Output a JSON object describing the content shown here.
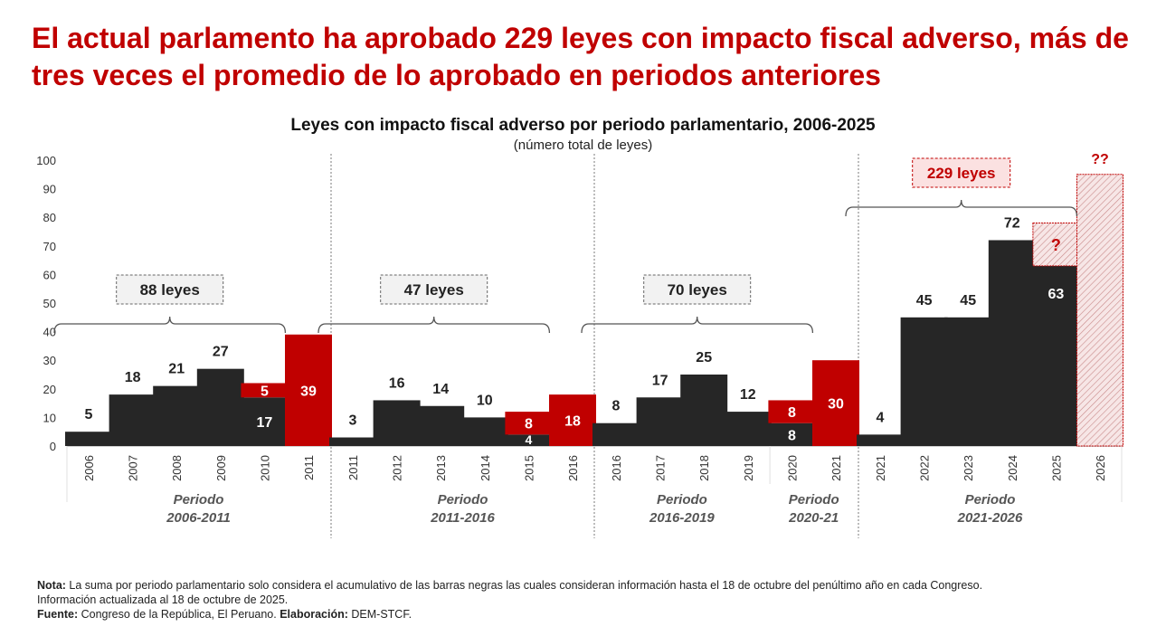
{
  "headline": "El actual parlamento ha aprobado 229 leyes con impacto fiscal adverso, más de tres veces el promedio de lo aprobado en periodos anteriores",
  "colors": {
    "headline": "#c00000",
    "black_bar": "#262626",
    "red_bar": "#c00000",
    "hatch": "#d9a0a0"
  },
  "chart_data": {
    "type": "bar",
    "title": "Leyes con impacto fiscal adverso por periodo parlamentario, 2006-2025",
    "subtitle": "(número total de leyes)",
    "xlabel": "",
    "ylabel": "",
    "ylim": [
      0,
      100
    ],
    "yticks": [
      0,
      10,
      20,
      30,
      40,
      50,
      60,
      70,
      80,
      90,
      100
    ],
    "grid": false,
    "legend": "none",
    "groups": [
      {
        "period_label_line1": "Periodo",
        "period_label_line2": "2006-2011",
        "summary": "88 leyes",
        "summary_style": "neutral",
        "bars": [
          {
            "year": "2006",
            "black": 5,
            "red": 0,
            "label": "5"
          },
          {
            "year": "2007",
            "black": 18,
            "red": 0,
            "label": "18"
          },
          {
            "year": "2008",
            "black": 21,
            "red": 0,
            "label": "21"
          },
          {
            "year": "2009",
            "black": 27,
            "red": 0,
            "label": "27"
          },
          {
            "year": "2010",
            "black": 17,
            "red": 5,
            "label_black": "17",
            "label_red": "5"
          },
          {
            "year": "2011",
            "black": 0,
            "red": 39,
            "label_red": "39"
          }
        ],
        "bracket_bars": 5
      },
      {
        "period_label_line1": "Periodo",
        "period_label_line2": "2011-2016",
        "summary": "47 leyes",
        "summary_style": "neutral",
        "bars": [
          {
            "year": "2011",
            "black": 3,
            "red": 0,
            "label": "3"
          },
          {
            "year": "2012",
            "black": 16,
            "red": 0,
            "label": "16"
          },
          {
            "year": "2013",
            "black": 14,
            "red": 0,
            "label": "14"
          },
          {
            "year": "2014",
            "black": 10,
            "red": 0,
            "label": "10"
          },
          {
            "year": "2015",
            "black": 4,
            "red": 8,
            "label_black": "4",
            "label_red": "8"
          },
          {
            "year": "2016",
            "black": 0,
            "red": 18,
            "label_red": "18"
          }
        ],
        "bracket_bars": 5
      },
      {
        "period_label_line1": "Periodo",
        "period_label_line2": "2016-2019",
        "summary": "70 leyes",
        "summary_style": "neutral",
        "bars": [
          {
            "year": "2016",
            "black": 8,
            "red": 0,
            "label": "8"
          },
          {
            "year": "2017",
            "black": 17,
            "red": 0,
            "label": "17"
          },
          {
            "year": "2018",
            "black": 25,
            "red": 0,
            "label": "25"
          },
          {
            "year": "2019",
            "black": 12,
            "red": 0,
            "label": "12"
          },
          {
            "year": "2020",
            "black": 8,
            "red": 8,
            "label_black": "8",
            "label_red": "8"
          },
          {
            "year": "2021",
            "black": 0,
            "red": 30,
            "label_red": "30"
          }
        ],
        "bracket_bars": 5,
        "sub_period": {
          "line1": "Periodo",
          "line2": "2020-21",
          "from_bar": 4
        }
      },
      {
        "period_label_line1": "Periodo",
        "period_label_line2": "2021-2026",
        "summary": "229 leyes",
        "summary_style": "highlight",
        "bars": [
          {
            "year": "2021",
            "black": 4,
            "red": 0,
            "label": "4"
          },
          {
            "year": "2022",
            "black": 45,
            "red": 0,
            "label": "45"
          },
          {
            "year": "2023",
            "black": 45,
            "red": 0,
            "label": "45"
          },
          {
            "year": "2024",
            "black": 72,
            "red": 0,
            "label": "72"
          },
          {
            "year": "2025",
            "black": 63,
            "red": 0,
            "hatched": 15,
            "label_black": "63",
            "label_hatched": "?"
          },
          {
            "year": "2026",
            "black": 0,
            "red": 0,
            "hatched": 95,
            "label_top": "??"
          }
        ],
        "bracket_bars": 5
      }
    ]
  },
  "note": {
    "nota_label": "Nota:",
    "nota_text": " La suma por periodo parlamentario solo considera el acumulativo de las barras negras las cuales consideran información hasta el 18 de octubre del penúltimo año en cada Congreso.",
    "update_text": "Información actualizada al 18 de octubre de 2025.",
    "fuente_label": "Fuente:",
    "fuente_text": " Congreso de la República, El Peruano. ",
    "elaboracion_label": "Elaboración:",
    "elaboracion_text": " DEM-STCF."
  }
}
